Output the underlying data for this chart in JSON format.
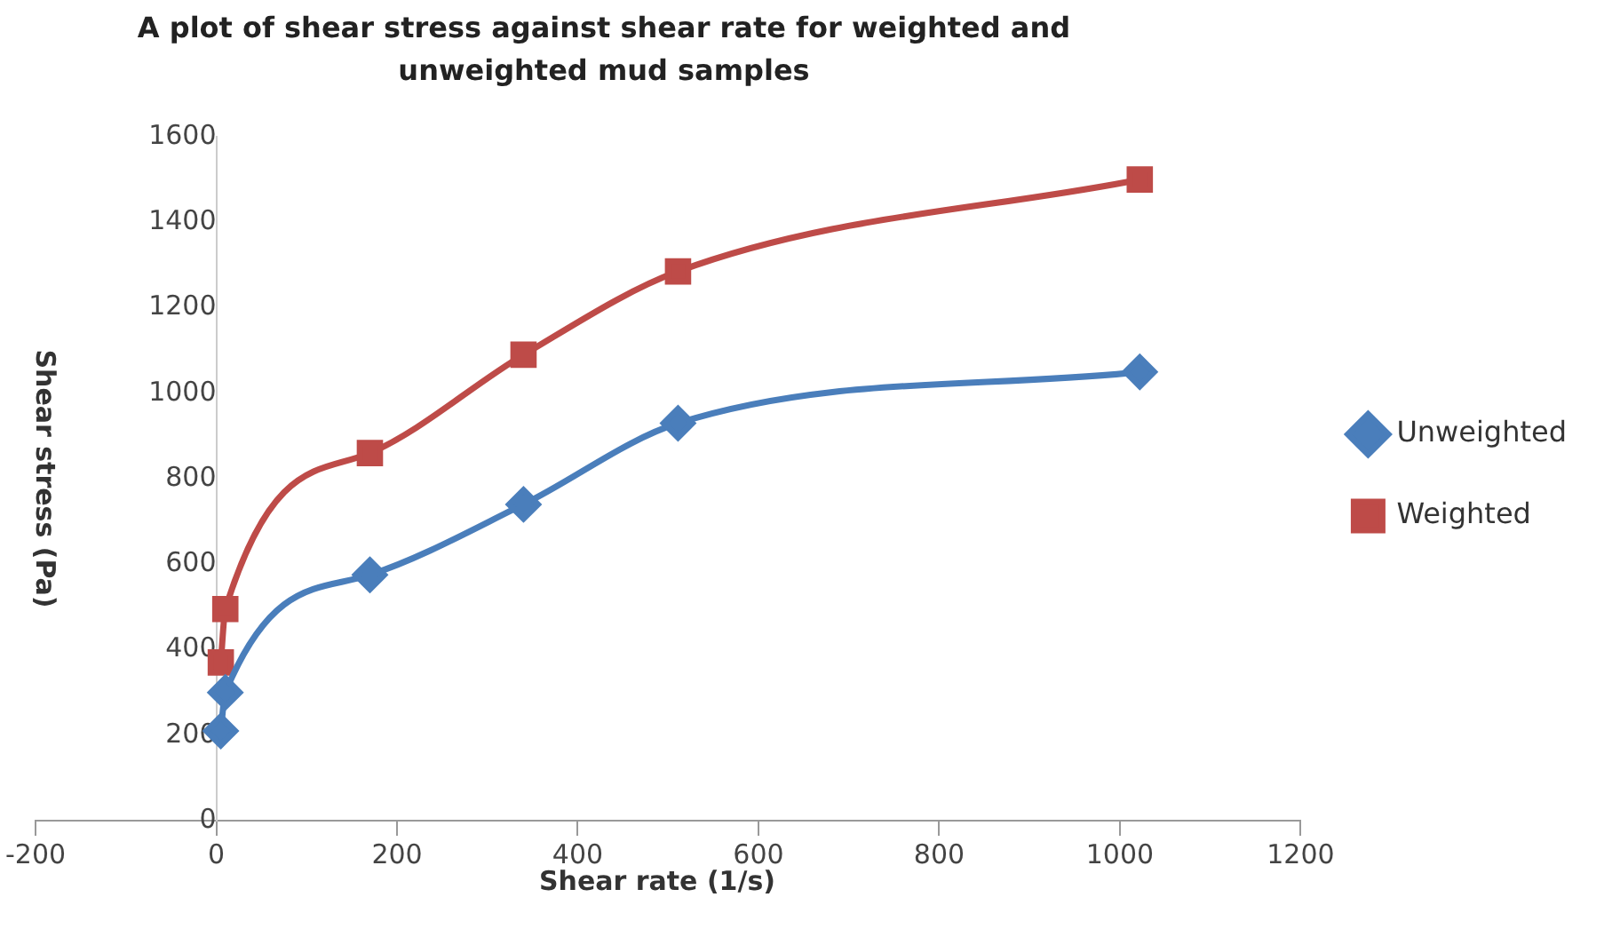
{
  "chart_data": {
    "type": "line",
    "title": "A plot of shear stress against shear rate for weighted and unweighted mud samples",
    "xlabel": "Shear rate (1/s)",
    "ylabel": "Shear stress (Pa)",
    "x": [
      5,
      10,
      170,
      340,
      511,
      1022
    ],
    "series": [
      {
        "name": "Unweighted",
        "color": "#4a7ebb",
        "marker": "diamond",
        "values": [
          210,
          300,
          575,
          740,
          930,
          1050
        ]
      },
      {
        "name": "Weighted",
        "color": "#be4b48",
        "marker": "square",
        "values": [
          370,
          495,
          860,
          1090,
          1285,
          1500
        ]
      }
    ],
    "xlim": [
      -200,
      1200
    ],
    "xticks": [
      -200,
      0,
      200,
      400,
      600,
      800,
      1000,
      1200
    ],
    "ylim": [
      0,
      1600
    ],
    "yticks": [
      0,
      200,
      400,
      600,
      800,
      1000,
      1200,
      1400,
      1600
    ],
    "grid": false,
    "legend": "right",
    "line_style": "solid"
  }
}
